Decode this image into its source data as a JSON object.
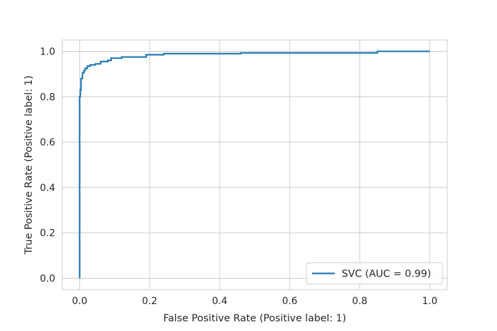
{
  "chart_data": {
    "type": "line",
    "title": "",
    "xlabel": "False Positive Rate (Positive label: 1)",
    "ylabel": "True Positive Rate (Positive label: 1)",
    "xlim": [
      -0.05,
      1.05
    ],
    "ylim": [
      -0.05,
      1.05
    ],
    "xticks": [
      "0.0",
      "0.2",
      "0.4",
      "0.6",
      "0.8",
      "1.0"
    ],
    "yticks": [
      "0.0",
      "0.2",
      "0.4",
      "0.6",
      "0.8",
      "1.0"
    ],
    "grid": true,
    "legend_position": "lower-right",
    "series": [
      {
        "name": "SVC (AUC = 0.99)",
        "color": "#1f77b4",
        "x": [
          0.0,
          0.0,
          0.002,
          0.002,
          0.004,
          0.004,
          0.008,
          0.008,
          0.012,
          0.012,
          0.016,
          0.016,
          0.022,
          0.022,
          0.03,
          0.03,
          0.045,
          0.045,
          0.06,
          0.06,
          0.08,
          0.08,
          0.09,
          0.09,
          0.12,
          0.12,
          0.19,
          0.19,
          0.24,
          0.24,
          0.46,
          0.46,
          0.85,
          0.85,
          1.0
        ],
        "y": [
          0.0,
          0.8,
          0.8,
          0.83,
          0.83,
          0.88,
          0.88,
          0.905,
          0.905,
          0.915,
          0.915,
          0.925,
          0.925,
          0.935,
          0.935,
          0.94,
          0.94,
          0.945,
          0.945,
          0.955,
          0.955,
          0.96,
          0.96,
          0.97,
          0.97,
          0.975,
          0.975,
          0.985,
          0.985,
          0.99,
          0.99,
          0.993,
          0.993,
          1.0,
          1.0
        ]
      }
    ]
  }
}
